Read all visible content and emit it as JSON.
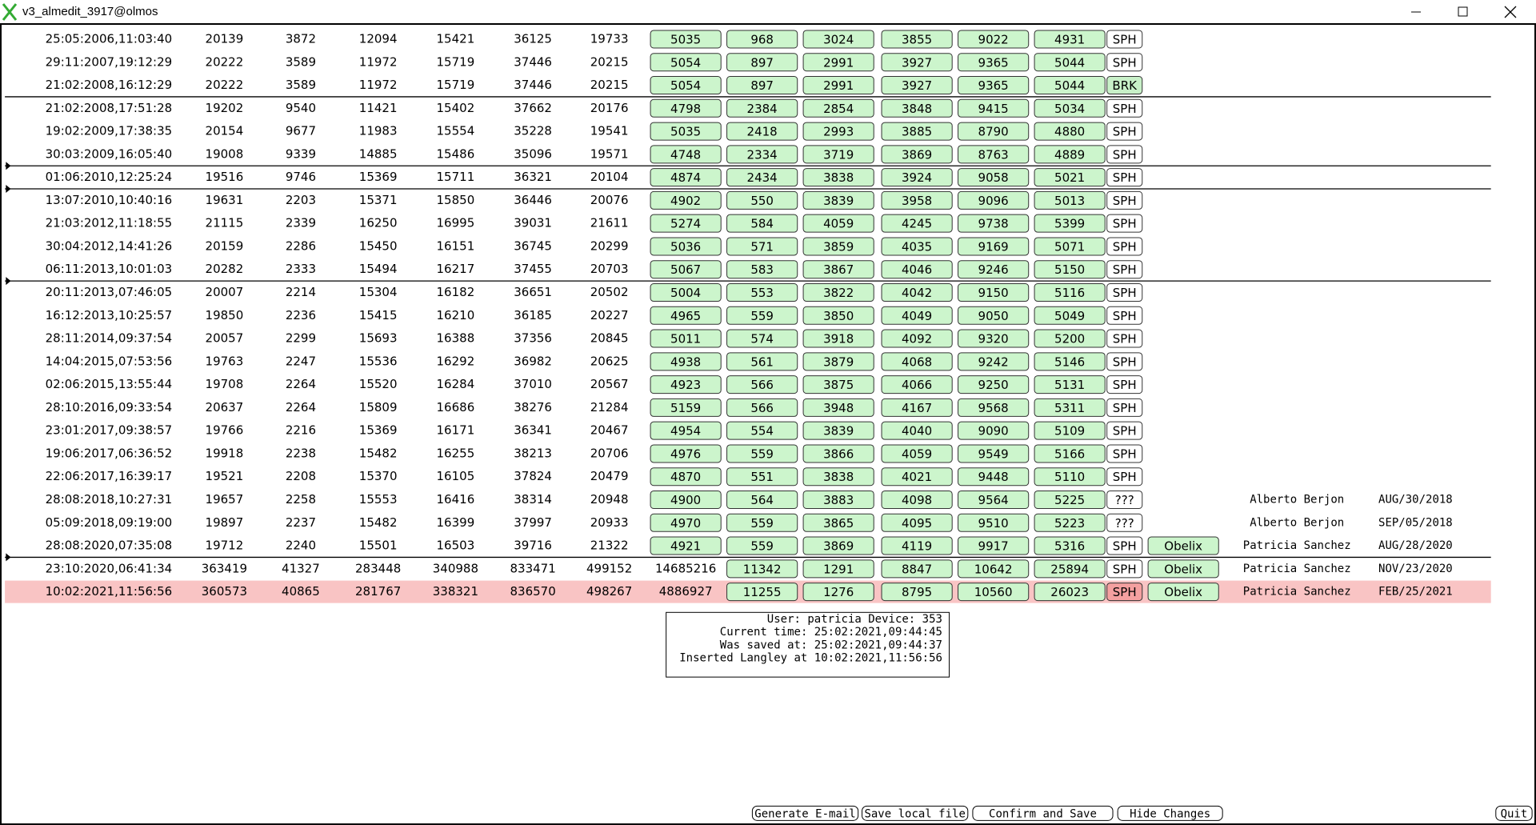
{
  "window": {
    "title": "v3_almedit_3917@olmos"
  },
  "rows": [
    {
      "date": "25:05:2006,11:03:40",
      "plain": [
        20139,
        3872,
        12094,
        15421,
        36125,
        19733
      ],
      "buttons": [
        5035,
        968,
        3024,
        3855,
        9022,
        4931
      ],
      "tag": "SPH"
    },
    {
      "date": "29:11:2007,19:12:29",
      "plain": [
        20222,
        3589,
        11972,
        15719,
        37446,
        20215
      ],
      "buttons": [
        5054,
        897,
        2991,
        3927,
        9365,
        5044
      ],
      "tag": "SPH"
    },
    {
      "date": "21:02:2008,16:12:29",
      "plain": [
        20222,
        3589,
        11972,
        15719,
        37446,
        20215
      ],
      "buttons": [
        5054,
        897,
        2991,
        3927,
        9365,
        5044
      ],
      "tag": "BRK",
      "tag_color": "#c8f0c8"
    },
    {
      "date": "21:02:2008,17:51:28",
      "plain": [
        19202,
        9540,
        11421,
        15402,
        37662,
        20176
      ],
      "buttons": [
        4798,
        2384,
        2854,
        3848,
        9415,
        5034
      ],
      "tag": "SPH"
    },
    {
      "date": "19:02:2009,17:38:35",
      "plain": [
        20154,
        9677,
        11983,
        15554,
        35228,
        19541
      ],
      "buttons": [
        5035,
        2418,
        2993,
        3885,
        8790,
        4880
      ],
      "tag": "SPH"
    },
    {
      "date": "30:03:2009,16:05:40",
      "plain": [
        19008,
        9339,
        14885,
        15486,
        35096,
        19571
      ],
      "buttons": [
        4748,
        2334,
        3719,
        3869,
        8763,
        4889
      ],
      "tag": "SPH"
    },
    {
      "date": "01:06:2010,12:25:24",
      "plain": [
        19516,
        9746,
        15369,
        15711,
        36321,
        20104
      ],
      "buttons": [
        4874,
        2434,
        3838,
        3924,
        9058,
        5021
      ],
      "tag": "SPH"
    },
    {
      "date": "13:07:2010,10:40:16",
      "plain": [
        19631,
        2203,
        15371,
        15850,
        36446,
        20076
      ],
      "buttons": [
        4902,
        550,
        3839,
        3958,
        9096,
        5013
      ],
      "tag": "SPH"
    },
    {
      "date": "21:03:2012,11:18:55",
      "plain": [
        21115,
        2339,
        16250,
        16995,
        39031,
        21611
      ],
      "buttons": [
        5274,
        584,
        4059,
        4245,
        9738,
        5399
      ],
      "tag": "SPH"
    },
    {
      "date": "30:04:2012,14:41:26",
      "plain": [
        20159,
        2286,
        15450,
        16151,
        36745,
        20299
      ],
      "buttons": [
        5036,
        571,
        3859,
        4035,
        9169,
        5071
      ],
      "tag": "SPH"
    },
    {
      "date": "06:11:2013,10:01:03",
      "plain": [
        20282,
        2333,
        15494,
        16217,
        37455,
        20703
      ],
      "buttons": [
        5067,
        583,
        3867,
        4046,
        9246,
        5150
      ],
      "tag": "SPH"
    },
    {
      "date": "20:11:2013,07:46:05",
      "plain": [
        20007,
        2214,
        15304,
        16182,
        36651,
        20502
      ],
      "buttons": [
        5004,
        553,
        3822,
        4042,
        9150,
        5116
      ],
      "tag": "SPH"
    },
    {
      "date": "16:12:2013,10:25:57",
      "plain": [
        19850,
        2236,
        15415,
        16210,
        36185,
        20227
      ],
      "buttons": [
        4965,
        559,
        3850,
        4049,
        9050,
        5049
      ],
      "tag": "SPH"
    },
    {
      "date": "28:11:2014,09:37:54",
      "plain": [
        20057,
        2299,
        15693,
        16388,
        37356,
        20845
      ],
      "buttons": [
        5011,
        574,
        3918,
        4092,
        9320,
        5200
      ],
      "tag": "SPH"
    },
    {
      "date": "14:04:2015,07:53:56",
      "plain": [
        19763,
        2247,
        15536,
        16292,
        36982,
        20625
      ],
      "buttons": [
        4938,
        561,
        3879,
        4068,
        9242,
        5146
      ],
      "tag": "SPH"
    },
    {
      "date": "02:06:2015,13:55:44",
      "plain": [
        19708,
        2264,
        15520,
        16284,
        37010,
        20567
      ],
      "buttons": [
        4923,
        566,
        3875,
        4066,
        9250,
        5131
      ],
      "tag": "SPH"
    },
    {
      "date": "28:10:2016,09:33:54",
      "plain": [
        20637,
        2264,
        15809,
        16686,
        38276,
        21284
      ],
      "buttons": [
        5159,
        566,
        3948,
        4167,
        9568,
        5311
      ],
      "tag": "SPH"
    },
    {
      "date": "23:01:2017,09:38:57",
      "plain": [
        19766,
        2216,
        15369,
        16171,
        36341,
        20467
      ],
      "buttons": [
        4954,
        554,
        3839,
        4040,
        9090,
        5109
      ],
      "tag": "SPH"
    },
    {
      "date": "19:06:2017,06:36:52",
      "plain": [
        19918,
        2238,
        15482,
        16255,
        38213,
        20706
      ],
      "buttons": [
        4976,
        559,
        3866,
        4059,
        9549,
        5166
      ],
      "tag": "SPH"
    },
    {
      "date": "22:06:2017,16:39:17",
      "plain": [
        19521,
        2208,
        15370,
        16105,
        37824,
        20479
      ],
      "buttons": [
        4870,
        551,
        3838,
        4021,
        9448,
        5110
      ],
      "tag": "SPH"
    },
    {
      "date": "28:08:2018,10:27:31",
      "plain": [
        19657,
        2258,
        15553,
        16416,
        38314,
        20948
      ],
      "buttons": [
        4900,
        564,
        3883,
        4098,
        9564,
        5225
      ],
      "tag": "???",
      "person": "Alberto Berjon",
      "date2": "AUG/30/2018"
    },
    {
      "date": "05:09:2018,09:19:00",
      "plain": [
        19897,
        2237,
        15482,
        16399,
        37997,
        20933
      ],
      "buttons": [
        4970,
        559,
        3865,
        4095,
        9510,
        5223
      ],
      "tag": "???",
      "person": "Alberto Berjon",
      "date2": "SEP/05/2018"
    },
    {
      "date": "28:08:2020,07:35:08",
      "plain": [
        19712,
        2240,
        15501,
        16503,
        39716,
        21322
      ],
      "buttons": [
        4921,
        559,
        3869,
        4119,
        9917,
        5316
      ],
      "tag": "SPH",
      "name": "Obelix",
      "person": "Patricia Sanchez",
      "date2": "AUG/28/2020"
    },
    {
      "date": "23:10:2020,06:41:34",
      "plain": [
        363419,
        41327,
        283448,
        340988,
        833471,
        499152,
        14685216
      ],
      "buttons": [
        11342,
        1291,
        8847,
        10642,
        25894
      ],
      "tag": "SPH",
      "name": "Obelix",
      "person": "Patricia Sanchez",
      "date2": "NOV/23/2020"
    },
    {
      "date": "10:02:2021,11:56:56",
      "plain": [
        360573,
        40865,
        281767,
        338321,
        836570,
        498267,
        4886927
      ],
      "buttons": [
        11255,
        1276,
        8795,
        10560,
        26023
      ],
      "tag": "SPH",
      "tag_color": "#f4a0a0",
      "name": "Obelix",
      "person": "Patricia Sanchez",
      "date2": "FEB/25/2021",
      "highlight": "#f9c4c4"
    }
  ],
  "info": [
    "User: patricia Device: 353",
    "Current time: 25:02:2021,09:44:45",
    "Was saved at: 25:02:2021,09:44:37",
    "Inserted Langley at 10:02:2021,11:56:56"
  ],
  "buttons": [
    "Generate E-mail",
    "Save local file",
    "Confirm and Save",
    "Hide Changes",
    "Quit"
  ]
}
